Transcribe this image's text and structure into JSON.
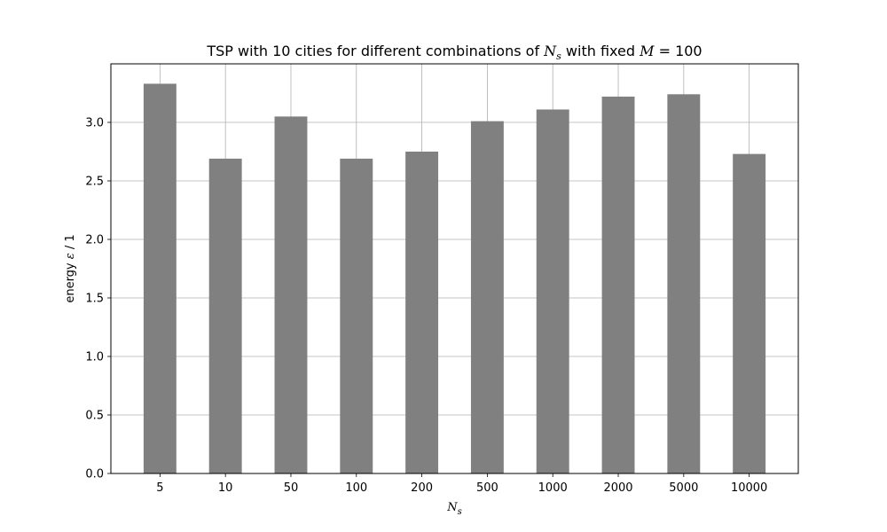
{
  "chart_data": {
    "type": "bar",
    "title": {
      "prefix": "TSP with 10 cities for different combinations of ",
      "var1": "N",
      "var1_sub": "s",
      "middle": " with fixed ",
      "var2": "M",
      "suffix": " = 100"
    },
    "xlabel": {
      "var": "N",
      "sub": "s"
    },
    "ylabel": {
      "prefix": "energy ",
      "var": "ε",
      "suffix": " / 1"
    },
    "categories": [
      "5",
      "10",
      "50",
      "100",
      "200",
      "500",
      "1000",
      "2000",
      "5000",
      "10000"
    ],
    "values": [
      3.33,
      2.69,
      3.05,
      2.69,
      2.75,
      3.01,
      3.11,
      3.22,
      3.24,
      2.73
    ],
    "ylim": [
      0,
      3.5
    ],
    "yticks": [
      "0.0",
      "0.5",
      "1.0",
      "1.5",
      "2.0",
      "2.5",
      "3.0"
    ],
    "grid": true,
    "bar_color": "#808080",
    "grid_color": "#b0b0b0"
  }
}
